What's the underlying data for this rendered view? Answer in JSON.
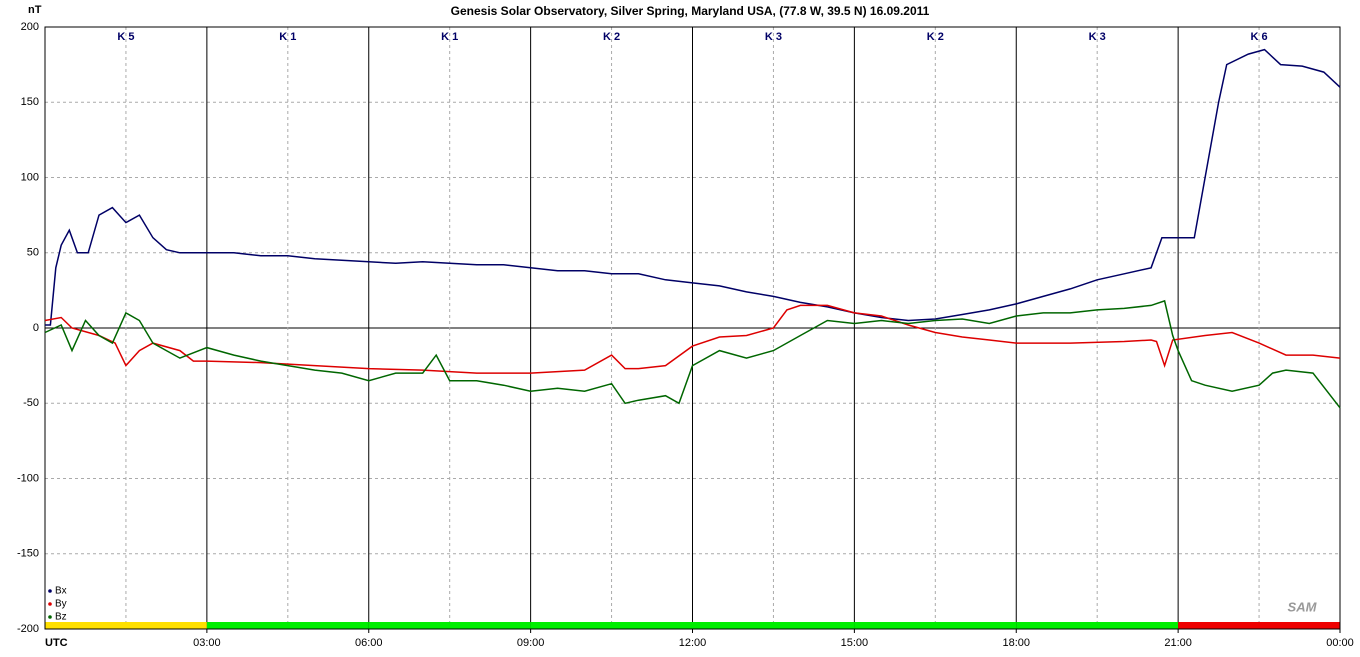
{
  "chart_data": {
    "type": "line",
    "title": "Genesis Solar Observatory, Silver Spring, Maryland USA, (77.8 W, 39.5 N)  16.09.2011",
    "y_label": "nT",
    "x_label": "UTC",
    "logo": "SAM",
    "xlim": [
      0,
      24
    ],
    "ylim": [
      -200,
      200
    ],
    "yticks": [
      -200,
      -150,
      -100,
      -50,
      0,
      50,
      100,
      150,
      200
    ],
    "xticks": [
      {
        "value": 3,
        "label": "03:00"
      },
      {
        "value": 6,
        "label": "06:00"
      },
      {
        "value": 9,
        "label": "09:00"
      },
      {
        "value": 12,
        "label": "12:00"
      },
      {
        "value": 15,
        "label": "15:00"
      },
      {
        "value": 18,
        "label": "18:00"
      },
      {
        "value": 21,
        "label": "21:00"
      },
      {
        "value": 24,
        "label": "00:00"
      }
    ],
    "minor_xticks": [
      1.5,
      4.5,
      7.5,
      10.5,
      13.5,
      16.5,
      19.5,
      22.5
    ],
    "grid": true,
    "legend": "bottom-left",
    "k_bands": [
      {
        "label": "K 5",
        "start": 0,
        "end": 3,
        "color": "#ffe000"
      },
      {
        "label": "K 1",
        "start": 3,
        "end": 6,
        "color": "#00ee00"
      },
      {
        "label": "K 1",
        "start": 6,
        "end": 9,
        "color": "#00ee00"
      },
      {
        "label": "K 2",
        "start": 9,
        "end": 12,
        "color": "#00ee00"
      },
      {
        "label": "K 3",
        "start": 12,
        "end": 15,
        "color": "#00ee00"
      },
      {
        "label": "K 2",
        "start": 15,
        "end": 18,
        "color": "#00ee00"
      },
      {
        "label": "K 3",
        "start": 18,
        "end": 21,
        "color": "#00ee00"
      },
      {
        "label": "K 6",
        "start": 21,
        "end": 24,
        "color": "#ee0000"
      }
    ],
    "series": [
      {
        "name": "Bx",
        "color": "#000066",
        "x": [
          0,
          0.1,
          0.2,
          0.3,
          0.45,
          0.6,
          0.8,
          1.0,
          1.25,
          1.5,
          1.75,
          2.0,
          2.25,
          2.5,
          3,
          3.5,
          4,
          4.5,
          5,
          5.5,
          6,
          6.5,
          7,
          7.5,
          8,
          8.5,
          9,
          9.5,
          10,
          10.5,
          11,
          11.5,
          12,
          12.5,
          13,
          13.5,
          14,
          14.5,
          15,
          15.5,
          16,
          16.5,
          17,
          17.5,
          18,
          18.5,
          19,
          19.5,
          20,
          20.5,
          20.7,
          21,
          21.3,
          21.5,
          21.75,
          21.9,
          22.3,
          22.6,
          22.9,
          23.3,
          23.7,
          24
        ],
        "values": [
          2,
          2,
          40,
          55,
          65,
          50,
          50,
          75,
          80,
          70,
          75,
          60,
          52,
          50,
          50,
          50,
          48,
          48,
          46,
          45,
          44,
          43,
          44,
          43,
          42,
          42,
          40,
          38,
          38,
          36,
          36,
          32,
          30,
          28,
          24,
          21,
          17,
          14,
          10,
          7,
          5,
          6,
          9,
          12,
          16,
          21,
          26,
          32,
          36,
          40,
          60,
          60,
          60,
          100,
          150,
          175,
          182,
          185,
          175,
          174,
          170,
          160
        ]
      },
      {
        "name": "By",
        "color": "#dd0000",
        "x": [
          0,
          0.3,
          0.5,
          1,
          1.3,
          1.5,
          1.75,
          2,
          2.5,
          2.75,
          3,
          4,
          5,
          6,
          7,
          8,
          9,
          10,
          10.5,
          10.75,
          11,
          11.5,
          12,
          12.5,
          13,
          13.5,
          13.75,
          14,
          14.5,
          15,
          15.5,
          16,
          16.5,
          17,
          17.5,
          18,
          19,
          20,
          20.5,
          20.6,
          20.75,
          20.9,
          21.5,
          22,
          22.5,
          23,
          23.5,
          24
        ],
        "values": [
          5,
          7,
          0,
          -5,
          -10,
          -25,
          -15,
          -10,
          -15,
          -22,
          -22,
          -23,
          -25,
          -27,
          -28,
          -30,
          -30,
          -28,
          -18,
          -27,
          -27,
          -25,
          -12,
          -6,
          -5,
          0,
          12,
          15,
          15,
          10,
          8,
          2,
          -3,
          -6,
          -8,
          -10,
          -10,
          -9,
          -8,
          -9,
          -25,
          -8,
          -5,
          -3,
          -10,
          -18,
          -18,
          -20
        ]
      },
      {
        "name": "Bz",
        "color": "#006600",
        "x": [
          0,
          0.3,
          0.5,
          0.75,
          1,
          1.25,
          1.5,
          1.75,
          2,
          2.25,
          2.5,
          3,
          3.5,
          4,
          4.5,
          5,
          5.5,
          6,
          6.5,
          7,
          7.25,
          7.5,
          8,
          8.5,
          9,
          9.5,
          10,
          10.5,
          10.75,
          11,
          11.5,
          11.75,
          12,
          12.5,
          13,
          13.5,
          14,
          14.5,
          15,
          15.5,
          16,
          16.5,
          17,
          17.5,
          18,
          18.5,
          19,
          19.5,
          20,
          20.5,
          20.75,
          20.9,
          21,
          21.25,
          21.5,
          22,
          22.5,
          22.75,
          23,
          23.5,
          24
        ],
        "values": [
          -3,
          2,
          -15,
          5,
          -5,
          -10,
          10,
          5,
          -10,
          -15,
          -20,
          -13,
          -18,
          -22,
          -25,
          -28,
          -30,
          -35,
          -30,
          -30,
          -18,
          -35,
          -35,
          -38,
          -42,
          -40,
          -42,
          -37,
          -50,
          -48,
          -45,
          -50,
          -25,
          -15,
          -20,
          -15,
          -5,
          5,
          3,
          5,
          3,
          5,
          6,
          3,
          8,
          10,
          10,
          12,
          13,
          15,
          18,
          -5,
          -15,
          -35,
          -38,
          -42,
          -38,
          -30,
          -28,
          -30,
          -53
        ]
      }
    ]
  }
}
